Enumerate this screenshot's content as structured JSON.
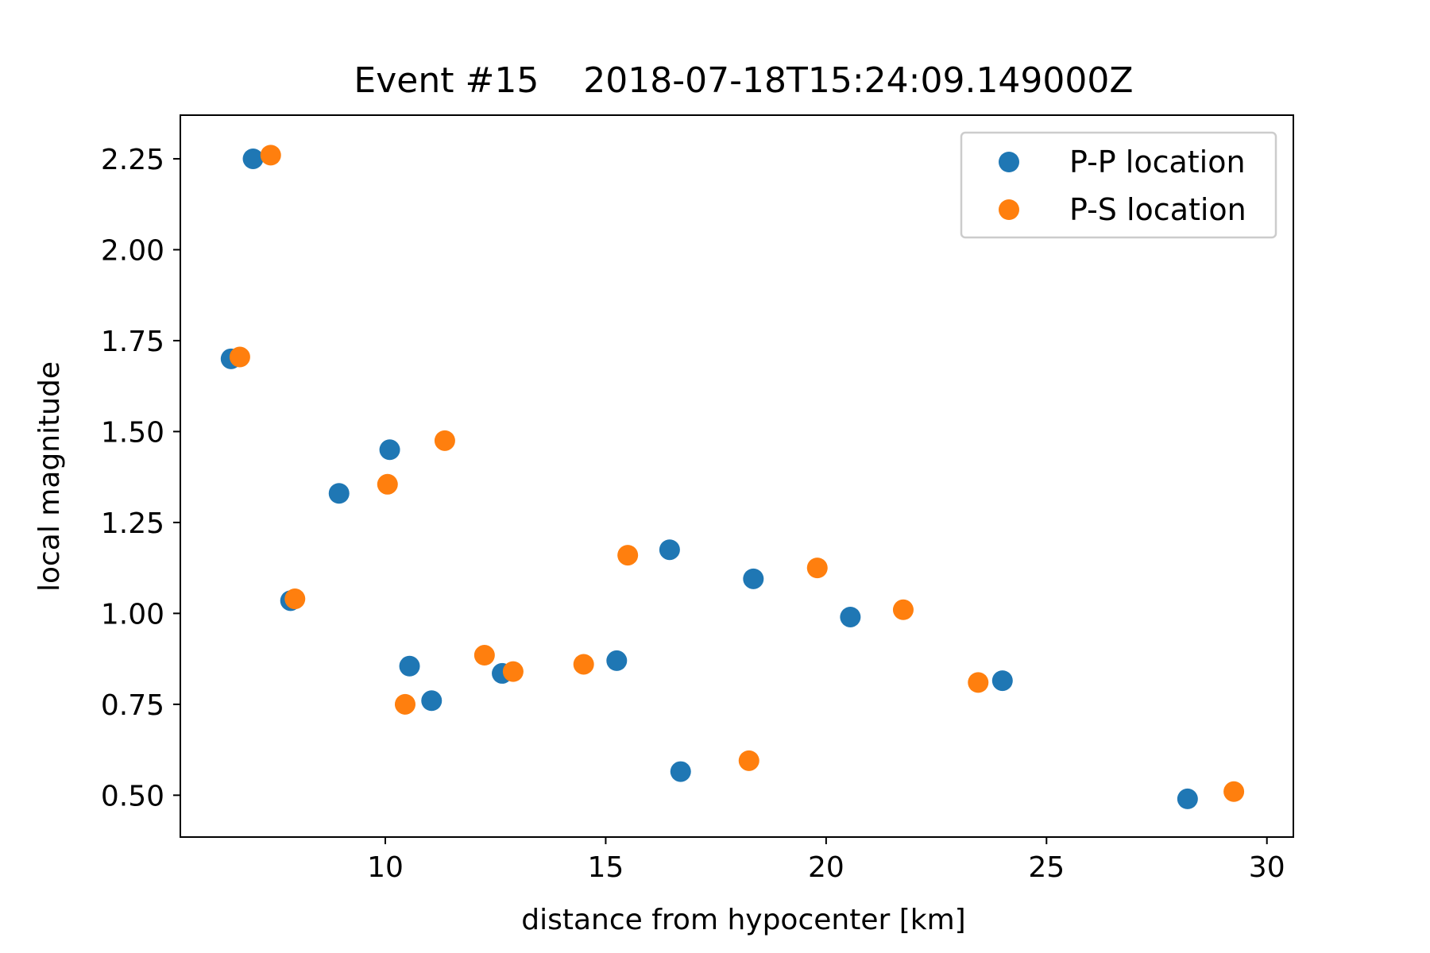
{
  "chart_data": {
    "type": "scatter",
    "title": "Event #15    2018-07-18T15:24:09.149000Z",
    "xlabel": "distance from hypocenter [km]",
    "ylabel": "local magnitude",
    "xlim": [
      5.35,
      30.6
    ],
    "ylim": [
      0.385,
      2.37
    ],
    "xticks": [
      10,
      15,
      20,
      25,
      30
    ],
    "xtick_labels": [
      "10",
      "15",
      "20",
      "25",
      "30"
    ],
    "yticks": [
      0.5,
      0.75,
      1.0,
      1.25,
      1.5,
      1.75,
      2.0,
      2.25
    ],
    "ytick_labels": [
      "0.50",
      "0.75",
      "1.00",
      "1.25",
      "1.50",
      "1.75",
      "2.00",
      "2.25"
    ],
    "grid": false,
    "legend_position": "top-right",
    "series": [
      {
        "name": "P-P location",
        "color": "#1f77b4",
        "points": [
          {
            "x": 7.0,
            "y": 2.25
          },
          {
            "x": 6.5,
            "y": 1.7
          },
          {
            "x": 10.1,
            "y": 1.45
          },
          {
            "x": 8.95,
            "y": 1.33
          },
          {
            "x": 7.85,
            "y": 1.035
          },
          {
            "x": 10.55,
            "y": 0.855
          },
          {
            "x": 11.05,
            "y": 0.76
          },
          {
            "x": 12.65,
            "y": 0.835
          },
          {
            "x": 15.25,
            "y": 0.87
          },
          {
            "x": 16.45,
            "y": 1.175
          },
          {
            "x": 16.7,
            "y": 0.565
          },
          {
            "x": 18.35,
            "y": 1.095
          },
          {
            "x": 20.55,
            "y": 0.99
          },
          {
            "x": 24.0,
            "y": 0.815
          },
          {
            "x": 28.2,
            "y": 0.49
          }
        ]
      },
      {
        "name": "P-S location",
        "color": "#ff7f0e",
        "points": [
          {
            "x": 7.4,
            "y": 2.26
          },
          {
            "x": 6.7,
            "y": 1.705
          },
          {
            "x": 11.35,
            "y": 1.475
          },
          {
            "x": 10.05,
            "y": 1.355
          },
          {
            "x": 7.95,
            "y": 1.04
          },
          {
            "x": 10.45,
            "y": 0.75
          },
          {
            "x": 12.25,
            "y": 0.885
          },
          {
            "x": 12.9,
            "y": 0.84
          },
          {
            "x": 14.5,
            "y": 0.86
          },
          {
            "x": 15.5,
            "y": 1.16
          },
          {
            "x": 18.25,
            "y": 0.595
          },
          {
            "x": 19.8,
            "y": 1.125
          },
          {
            "x": 21.75,
            "y": 1.01
          },
          {
            "x": 23.45,
            "y": 0.81
          },
          {
            "x": 29.25,
            "y": 0.51
          }
        ]
      }
    ]
  }
}
